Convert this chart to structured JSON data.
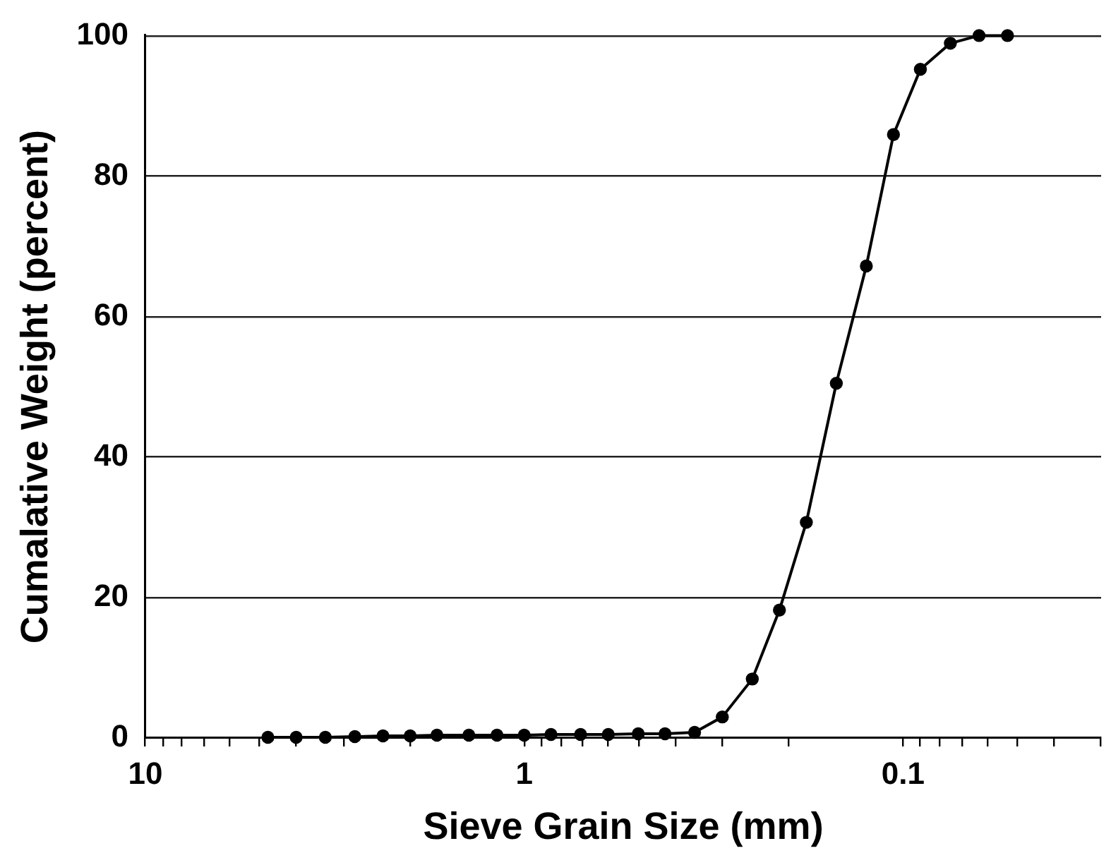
{
  "chart_data": {
    "type": "line",
    "xlabel": "Sieve Grain Size (mm)",
    "ylabel": "Cumalative Weight (percent)",
    "log": "x",
    "x": [
      4.75,
      4,
      3.35,
      2.8,
      2.36,
      2,
      1.7,
      1.4,
      1.18,
      1,
      0.85,
      0.71,
      0.6,
      0.5,
      0.425,
      0.355,
      0.3,
      0.25,
      0.212,
      0.18,
      0.15,
      0.125,
      0.106,
      0.09,
      0.075,
      0.063,
      0.053
    ],
    "values": [
      0.1,
      0.1,
      0.1,
      0.2,
      0.3,
      0.3,
      0.4,
      0.4,
      0.4,
      0.4,
      0.5,
      0.5,
      0.5,
      0.6,
      0.6,
      0.8,
      3.0,
      8.4,
      18.2,
      30.7,
      50.5,
      67.2,
      85.9,
      95.2,
      98.9,
      100,
      100
    ],
    "color": "#000000",
    "marker": "circle",
    "line_style": "solid",
    "xlim": [
      10,
      0.03
    ],
    "xticks": [
      10,
      {
        "value": 9,
        "label": null
      },
      {
        "value": 8,
        "label": null
      },
      {
        "value": 7,
        "label": null
      },
      {
        "value": 6,
        "label": null
      },
      {
        "value": 5,
        "label": null
      },
      {
        "value": 4,
        "label": null
      },
      {
        "value": 3,
        "label": null
      },
      {
        "value": 2,
        "label": null
      },
      1,
      {
        "value": 0.9,
        "label": null
      },
      {
        "value": 0.8,
        "label": null
      },
      {
        "value": 0.7,
        "label": null
      },
      {
        "value": 0.6,
        "label": null
      },
      {
        "value": 0.5,
        "label": null
      },
      {
        "value": 0.4,
        "label": null
      },
      {
        "value": 0.3,
        "label": null
      },
      {
        "value": 0.2,
        "label": null
      },
      0.1,
      {
        "value": 0.09,
        "label": null
      },
      {
        "value": 0.08,
        "label": null
      },
      {
        "value": 0.07,
        "label": null
      },
      {
        "value": 0.06,
        "label": null
      },
      {
        "value": 0.05,
        "label": null
      },
      {
        "value": 0.04,
        "label": null
      },
      {
        "value": 0.03,
        "label": null
      }
    ],
    "ylim": [
      0,
      100
    ],
    "yticks": [
      0,
      20,
      40,
      60,
      80,
      100
    ],
    "grid": "y"
  }
}
